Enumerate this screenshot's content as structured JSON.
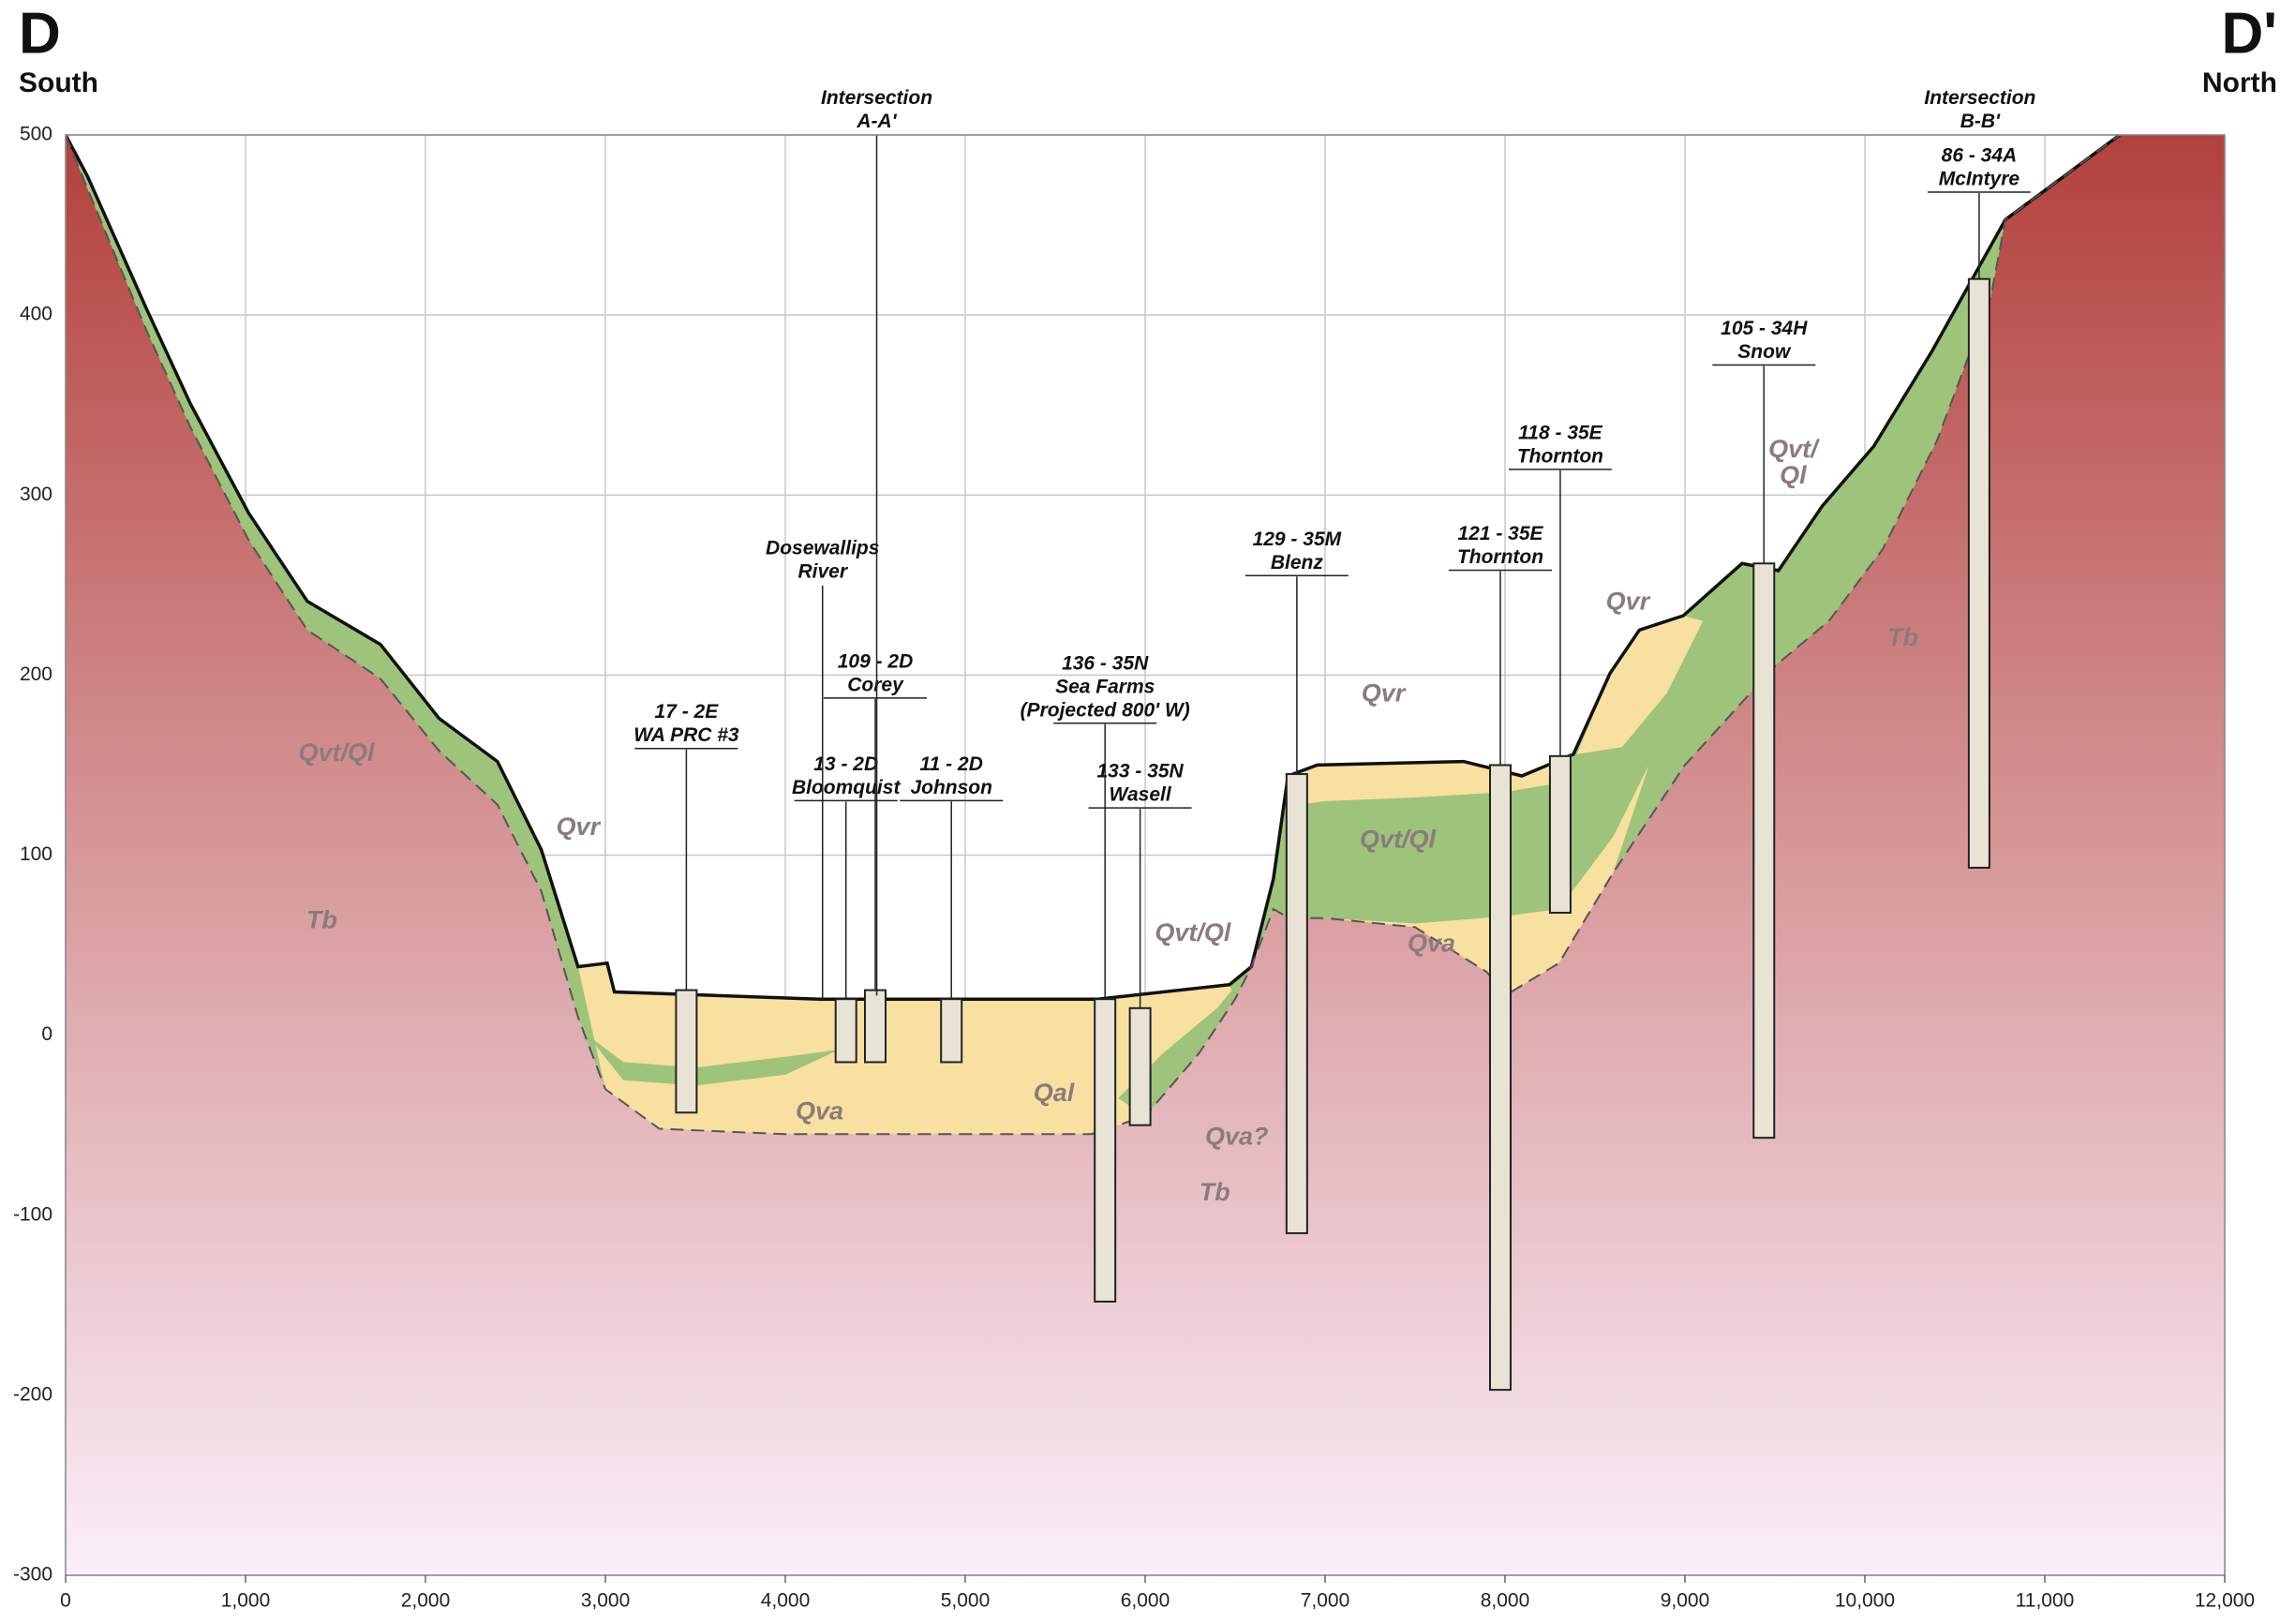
{
  "chart_data": {
    "type": "cross-section",
    "title_left": "D",
    "subtitle_left": "South",
    "title_right": "D'",
    "subtitle_right": "North",
    "xlim": [
      0,
      12000
    ],
    "ylim": [
      -300,
      500
    ],
    "xticks": [
      0,
      {
        "value": 1000,
        "label": "1,000"
      },
      {
        "value": 2000,
        "label": "2,000"
      },
      {
        "value": 3000,
        "label": "3,000"
      },
      {
        "value": 4000,
        "label": "4,000"
      },
      {
        "value": 5000,
        "label": "5,000"
      },
      {
        "value": 6000,
        "label": "6,000"
      },
      {
        "value": 7000,
        "label": "7,000"
      },
      {
        "value": 8000,
        "label": "8,000"
      },
      {
        "value": 9000,
        "label": "9,000"
      },
      {
        "value": 10000,
        "label": "10,000"
      },
      {
        "value": 11000,
        "label": "11,000"
      },
      {
        "value": 12000,
        "label": "12,000"
      }
    ],
    "yticks": [
      -300,
      -200,
      -100,
      0,
      100,
      200,
      300,
      400,
      500
    ],
    "grid": true,
    "layers": [
      {
        "gradient": [
          "#b2413c",
          "#fbeff8"
        ],
        "x": [
          0,
          122,
          447,
          692,
          1017,
          1343,
          1750,
          2075,
          2400,
          2644,
          2848,
          3010,
          3050,
          4190,
          5736,
          6468,
          6590,
          6713,
          6794,
          6956,
          7770,
          8094,
          8380,
          8584,
          8747,
          8991,
          9317,
          9520,
          9764,
          10049,
          10374,
          10781,
          11106,
          11416,
          12000,
          12000,
          0
        ],
        "values": [
          500,
          477,
          404,
          351,
          290,
          241,
          217,
          176,
          152,
          103,
          38,
          40,
          24,
          20,
          20,
          28,
          38,
          87,
          144,
          150,
          152,
          144,
          156,
          201,
          225,
          233,
          262,
          258,
          294,
          327,
          380,
          453,
          477,
          500,
          500,
          -300,
          -300
        ]
      },
      {
        "color": "#9dc47a",
        "x": [
          0,
          122,
          447,
          692,
          1017,
          1343,
          1750,
          2075,
          2400,
          2644,
          2848,
          3010,
          3050,
          4190,
          5736,
          6468,
          6590,
          6713,
          6794,
          6956,
          7770,
          8094,
          8380,
          8584,
          8747,
          8991,
          9317,
          9520,
          9764,
          10049,
          10374,
          10781,
          11106,
          11416,
          11106,
          10781,
          10700,
          10400,
          10100,
          9800,
          9500,
          9000,
          8600,
          8300,
          8000,
          7900,
          7500,
          7000,
          6800,
          6713,
          6590,
          6500,
          6300,
          6000,
          5700,
          5000,
          4000,
          3300,
          3000,
          2848,
          2644,
          2400,
          2075,
          1750,
          1343,
          1017,
          692,
          447,
          122
        ],
        "values": [
          500,
          477,
          404,
          351,
          290,
          241,
          217,
          176,
          152,
          103,
          38,
          40,
          24,
          20,
          20,
          28,
          38,
          87,
          144,
          150,
          152,
          144,
          156,
          201,
          225,
          233,
          262,
          258,
          294,
          327,
          380,
          453,
          477,
          500,
          477,
          453,
          410,
          330,
          270,
          230,
          205,
          150,
          90,
          40,
          22,
          35,
          60,
          65,
          65,
          70,
          38,
          20,
          -10,
          -45,
          -55,
          -55,
          -55,
          -52,
          -30,
          10,
          80,
          128,
          158,
          198,
          225,
          275,
          338,
          392,
          470
        ]
      },
      {
        "color": "#f8e0a0",
        "x": [
          2848,
          3010,
          3050,
          4190,
          5736,
          6468,
          6500,
          6300,
          6000,
          5700,
          5000,
          4000,
          3300,
          3000
        ],
        "values": [
          38,
          40,
          24,
          20,
          20,
          28,
          20,
          -10,
          -45,
          -55,
          -55,
          -55,
          -52,
          -30
        ]
      },
      {
        "color": "#9dc47a",
        "x": [
          2900,
          3100,
          3500,
          4000,
          4300,
          4000,
          3500,
          3100
        ],
        "values": [
          0,
          -15,
          -18,
          -12,
          -8,
          -22,
          -28,
          -25
        ]
      },
      {
        "color": "#9dc47a",
        "x": [
          5850,
          6100,
          6400,
          6590,
          6500,
          6300,
          6000
        ],
        "values": [
          -35,
          -10,
          15,
          38,
          20,
          -10,
          -45
        ]
      },
      {
        "color": "#f8e0a0",
        "x": [
          6794,
          6956,
          7770,
          8094,
          8380,
          8300,
          8000,
          7500,
          7000,
          6850
        ],
        "values": [
          144,
          150,
          152,
          144,
          156,
          140,
          135,
          132,
          130,
          128
        ]
      },
      {
        "color": "#f8e0a0",
        "x": [
          7000,
          7500,
          8000,
          8300,
          8600,
          8800,
          8600,
          8300,
          8000,
          7900,
          7500
        ],
        "values": [
          65,
          62,
          66,
          70,
          110,
          150,
          90,
          40,
          22,
          35,
          60
        ]
      },
      {
        "color": "#f8e0a0",
        "x": [
          8400,
          8584,
          8747,
          8991,
          9100,
          8900,
          8650
        ],
        "values": [
          156,
          201,
          225,
          233,
          230,
          190,
          160
        ]
      }
    ],
    "lines": [
      {
        "color": "#111111",
        "dashed": false,
        "x": [
          0,
          122,
          447,
          692,
          1017,
          1343,
          1750,
          2075,
          2400,
          2644,
          2848,
          3010,
          3050,
          4190,
          5736,
          6468,
          6590,
          6713,
          6794,
          6956,
          7770,
          8094,
          8380,
          8584,
          8747,
          8991,
          9317,
          9520,
          9764,
          10049,
          10374,
          10781,
          11106,
          11416
        ],
        "values": [
          500,
          477,
          404,
          351,
          290,
          241,
          217,
          176,
          152,
          103,
          38,
          40,
          24,
          20,
          20,
          28,
          38,
          87,
          144,
          150,
          152,
          144,
          156,
          201,
          225,
          233,
          262,
          258,
          294,
          327,
          380,
          453,
          477,
          500
        ]
      },
      {
        "color": "#555555",
        "dashed": true,
        "x": [
          0,
          122,
          447,
          692,
          1017,
          1343,
          1750,
          2075,
          2400,
          2644,
          2848,
          3000,
          3300,
          4000,
          5000,
          5700,
          6000,
          6300,
          6500,
          6590,
          6713,
          6800,
          7000,
          7500,
          7900,
          8000,
          8300,
          8600,
          9000,
          9500,
          9800,
          10100,
          10400,
          10700,
          10781,
          11106,
          11416
        ],
        "values": [
          500,
          470,
          392,
          338,
          275,
          225,
          198,
          158,
          128,
          80,
          10,
          -30,
          -52,
          -55,
          -55,
          -55,
          -45,
          -10,
          20,
          38,
          70,
          65,
          65,
          60,
          35,
          22,
          40,
          90,
          150,
          205,
          230,
          270,
          330,
          410,
          453,
          477,
          500
        ]
      }
    ],
    "wells": [
      {
        "label": [
          "17 - 2E",
          "WA PRC #3"
        ],
        "x": 3450,
        "top": 25,
        "bottom": -43,
        "label_y": 166
      },
      {
        "label": [
          "13 - 2D",
          "Bloomquist"
        ],
        "x": 4337,
        "top": 20,
        "bottom": -15,
        "label_y": 137
      },
      {
        "label": [
          "109 - 2D",
          "Corey"
        ],
        "x": 4500,
        "top": 25,
        "bottom": -15,
        "label_y": 194
      },
      {
        "label": [
          "11 - 2D",
          "Johnson"
        ],
        "x": 4923,
        "top": 20,
        "bottom": -15,
        "label_y": 137
      },
      {
        "label": [
          "136 - 35N",
          "Sea Farms",
          "(Projected 800' W)"
        ],
        "x": 5777,
        "top": 20,
        "bottom": -148,
        "label_y": 180
      },
      {
        "label": [
          "133 - 35N",
          "Wasell"
        ],
        "x": 5972,
        "top": 15,
        "bottom": -50,
        "label_y": 133
      },
      {
        "label": [
          "129 - 35M",
          "Blenz"
        ],
        "x": 6843,
        "top": 145,
        "bottom": -110,
        "label_y": 262
      },
      {
        "label": [
          "121 - 35E",
          "Thornton"
        ],
        "x": 7974,
        "top": 150,
        "bottom": -197,
        "label_y": 265
      },
      {
        "label": [
          "118 - 35E",
          "Thornton"
        ],
        "x": 8307,
        "top": 155,
        "bottom": 68,
        "label_y": 321
      },
      {
        "label": [
          "105 - 34H",
          "Snow"
        ],
        "x": 9439,
        "top": 262,
        "bottom": -57,
        "label_y": 379
      },
      {
        "label": [
          "86 - 34A",
          "McIntyre"
        ],
        "x": 10635,
        "top": 420,
        "bottom": 93,
        "label_y": 475
      }
    ],
    "callouts": [
      {
        "label": [
          "Dosewallips",
          "River"
        ],
        "x": 4207,
        "label_y": 257,
        "to": 20
      },
      {
        "label": [
          "Intersection",
          "A-A'"
        ],
        "x": 4508,
        "label_y": 507,
        "to": 22
      },
      {
        "label": [
          "Intersection",
          "B-B'"
        ],
        "x": 10640,
        "label_y": 507
      }
    ],
    "units": [
      {
        "label": [
          "Qvt/Ql"
        ],
        "x": 1505,
        "y": 156
      },
      {
        "label": [
          "Tb"
        ],
        "x": 1424,
        "y": 63
      },
      {
        "label": [
          "Qvr"
        ],
        "x": 2848,
        "y": 115
      },
      {
        "label": [
          "Qva"
        ],
        "x": 4190,
        "y": -43
      },
      {
        "label": [
          "Qal"
        ],
        "x": 5492,
        "y": -33
      },
      {
        "label": [
          "Qvt/Ql"
        ],
        "x": 6265,
        "y": 56
      },
      {
        "label": [
          "Qva?"
        ],
        "x": 6509,
        "y": -57
      },
      {
        "label": [
          "Tb"
        ],
        "x": 6387,
        "y": -88
      },
      {
        "label": [
          "Qvr"
        ],
        "x": 7323,
        "y": 189
      },
      {
        "label": [
          "Qvt/Ql"
        ],
        "x": 7404,
        "y": 108
      },
      {
        "label": [
          "Qva"
        ],
        "x": 7591,
        "y": 50
      },
      {
        "label": [
          "Qvr"
        ],
        "x": 8682,
        "y": 240
      },
      {
        "label": [
          "Qvt/",
          "Ql"
        ],
        "x": 9601,
        "y": 310
      },
      {
        "label": [
          "Tb"
        ],
        "x": 10211,
        "y": 220
      }
    ]
  }
}
